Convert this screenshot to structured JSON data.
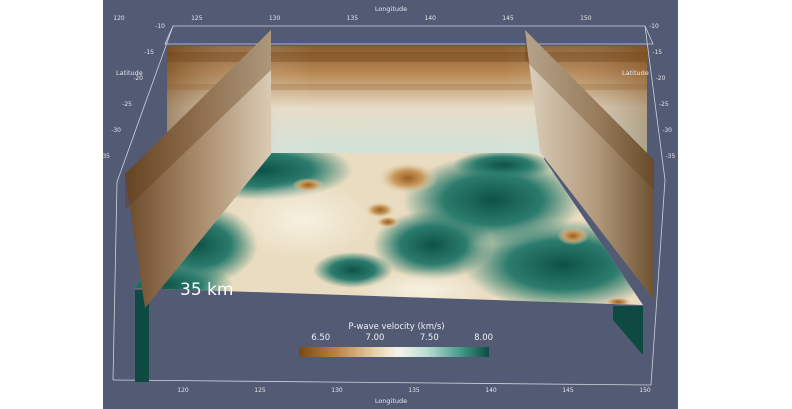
{
  "scene": {
    "depth_label": "35 km",
    "axes": {
      "longitude_title": "Longitude",
      "latitude_title": "Latitude",
      "longitude_ticks": [
        "120",
        "125",
        "130",
        "135",
        "140",
        "145",
        "150"
      ],
      "latitude_ticks": [
        "-10",
        "-15",
        "-20",
        "-25",
        "-30",
        "-35"
      ]
    },
    "colorbar": {
      "title": "P-wave velocity (km/s)",
      "ticks": [
        "6.50",
        "7.00",
        "7.50",
        "8.00"
      ],
      "range": [
        6.3,
        8.05
      ],
      "colors": [
        "#7a4a12",
        "#e8d2a8",
        "#f6f3ea",
        "#3f9585",
        "#0c4b41"
      ]
    }
  }
}
